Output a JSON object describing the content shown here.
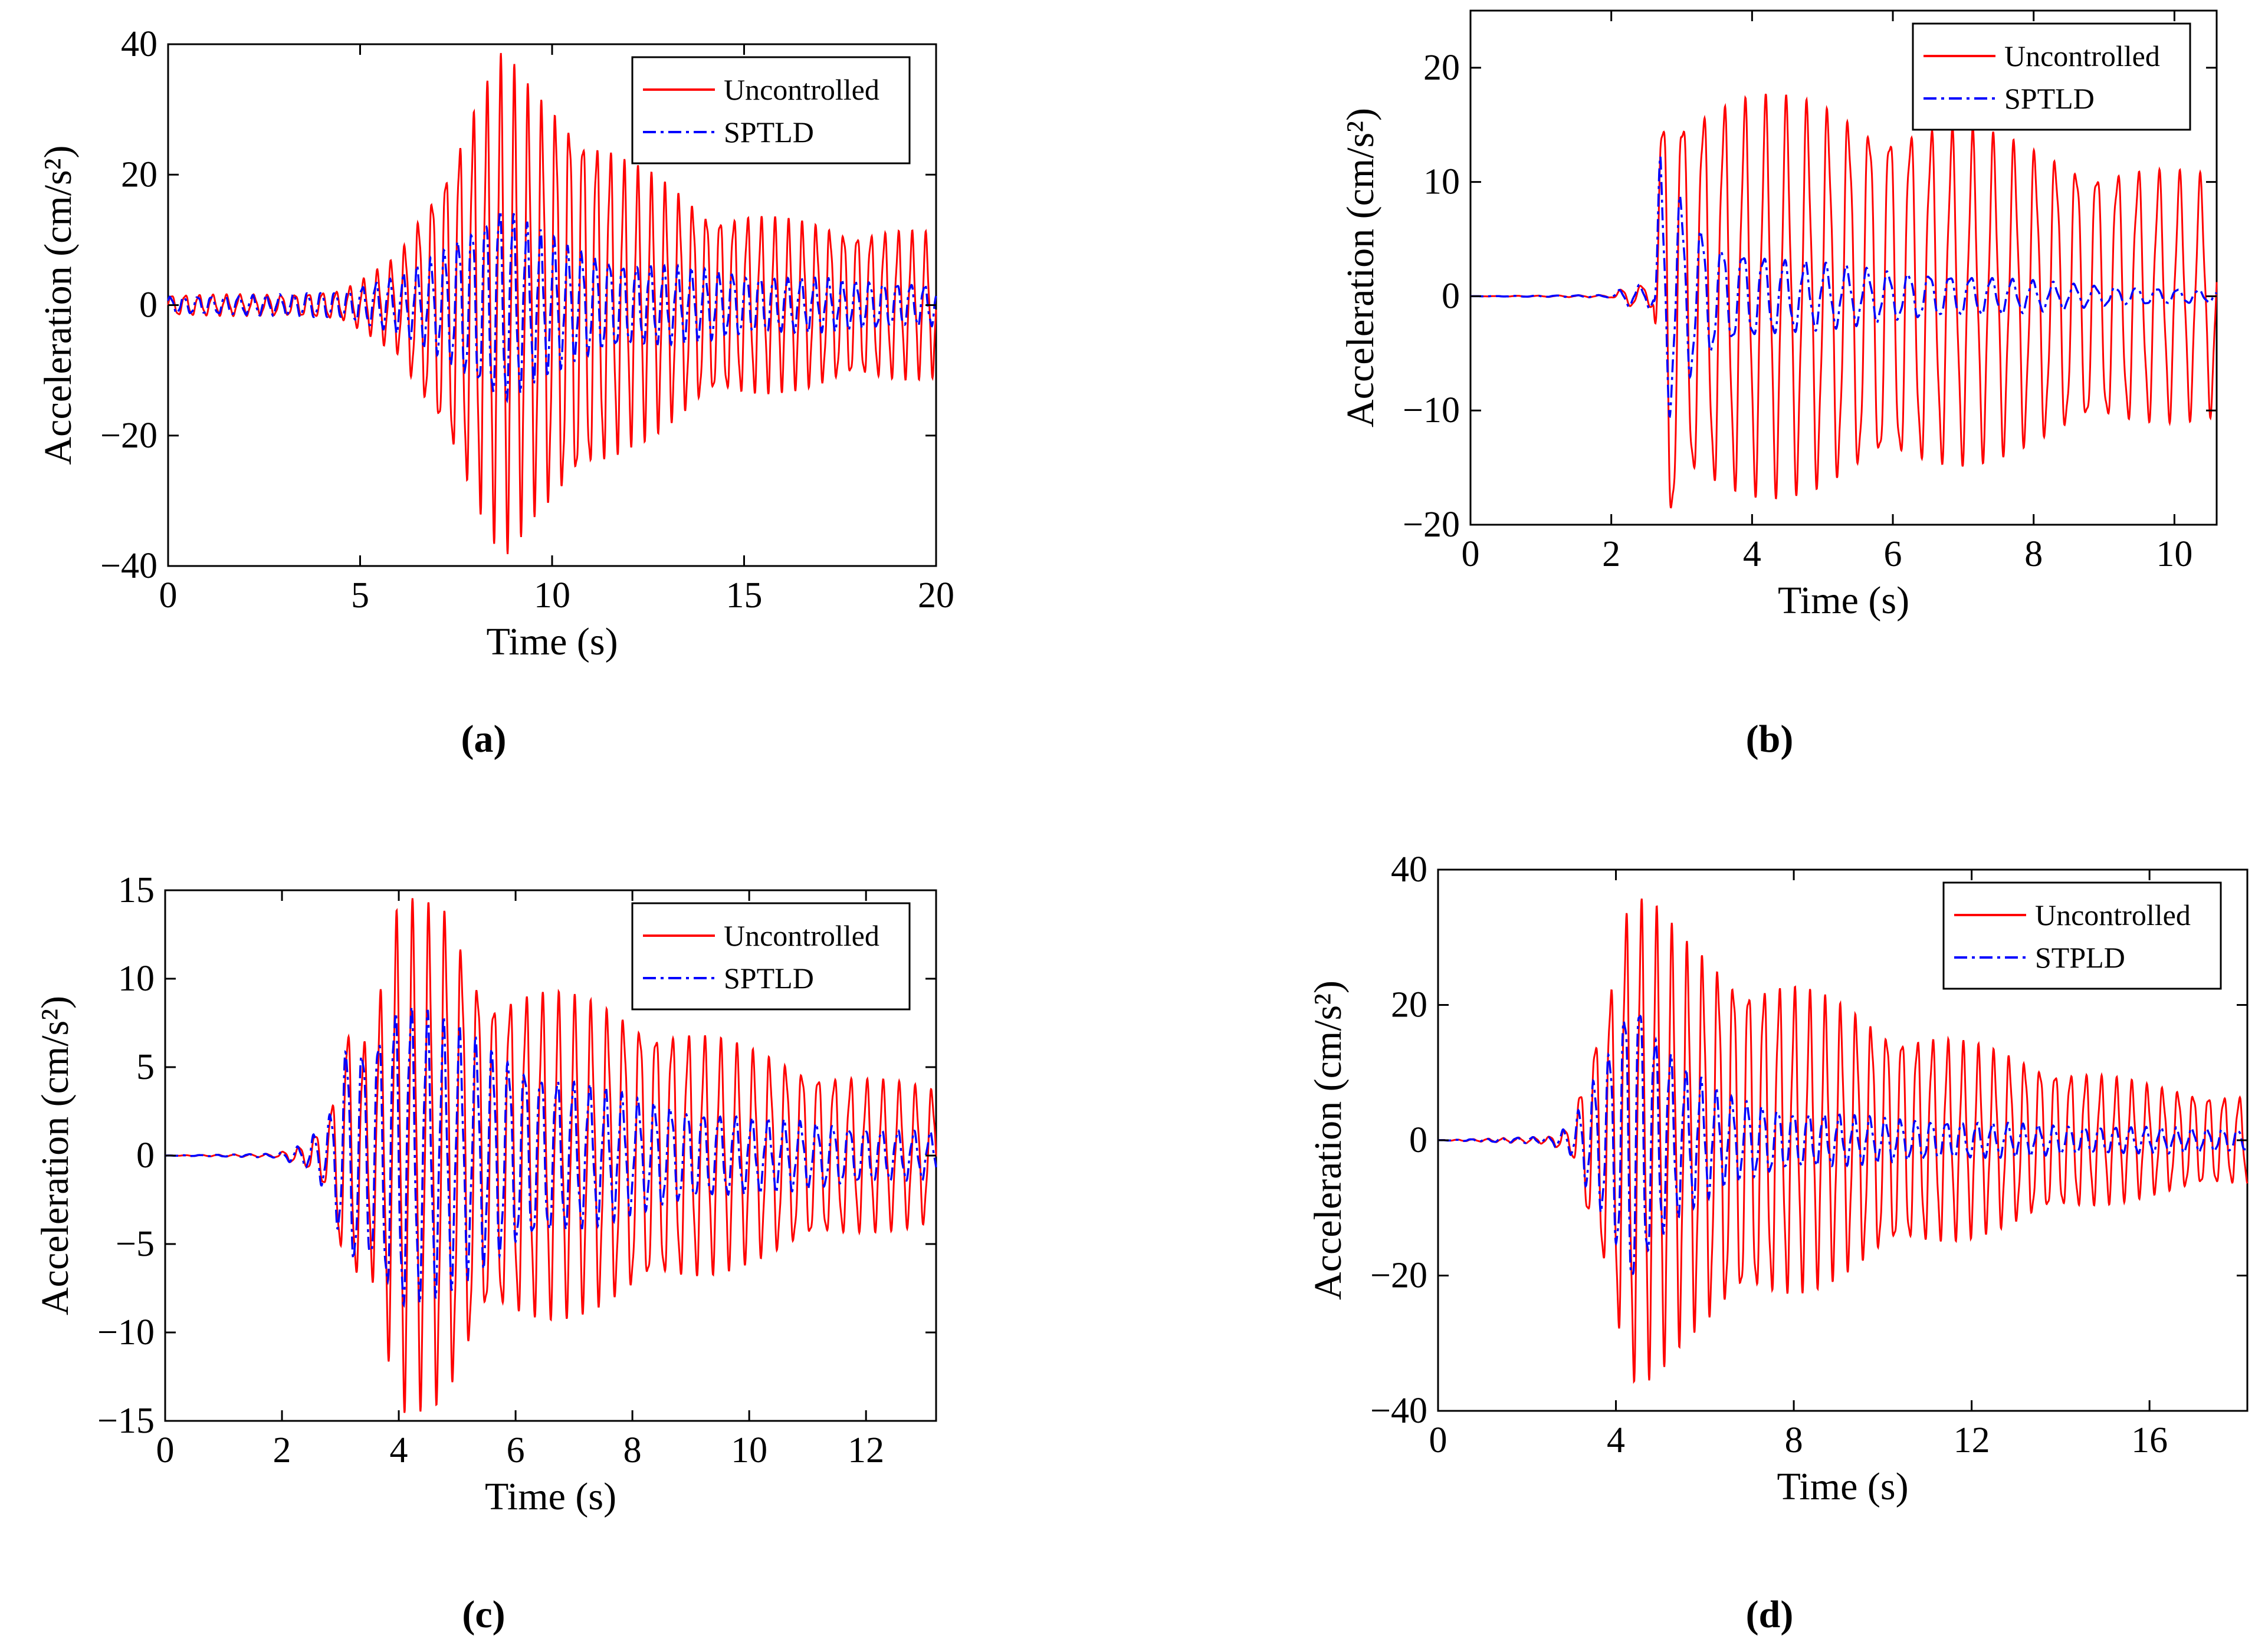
{
  "colors": {
    "uncontrolled": "#ff0000",
    "controlled": "#0000ff",
    "axis": "#000000",
    "background": "#ffffff"
  },
  "chart_data": [
    {
      "panel": "(a)",
      "type": "line",
      "xlabel": "Time (s)",
      "ylabel": "Acceleration (cm/s²)",
      "xlim": [
        0,
        20
      ],
      "ylim": [
        -40,
        40
      ],
      "xticks": [
        0,
        5,
        10,
        15,
        20
      ],
      "yticks": [
        -40,
        -20,
        0,
        20,
        40
      ],
      "grid": false,
      "legend_position": "top-right",
      "series": [
        {
          "name": "Uncontrolled",
          "style": "solid",
          "frequency_hz": 2.8,
          "envelope": [
            [
              0,
              1.5
            ],
            [
              3,
              1.5
            ],
            [
              4.5,
              2
            ],
            [
              5.2,
              4
            ],
            [
              6,
              7
            ],
            [
              7,
              18
            ],
            [
              8,
              29
            ],
            [
              8.7,
              35
            ],
            [
              9.5,
              30
            ],
            [
              10.5,
              28
            ],
            [
              12,
              20
            ],
            [
              14,
              14
            ],
            [
              16,
              12
            ],
            [
              18,
              11
            ],
            [
              20,
              10
            ]
          ]
        },
        {
          "name": "SPTLD",
          "style": "dash-dot",
          "frequency_hz": 2.8,
          "envelope": [
            [
              0,
              1.2
            ],
            [
              3,
              1.5
            ],
            [
              4.5,
              2
            ],
            [
              5.2,
              3
            ],
            [
              6,
              4
            ],
            [
              7,
              7
            ],
            [
              8,
              12
            ],
            [
              8.7,
              15
            ],
            [
              9.5,
              11
            ],
            [
              10.5,
              8
            ],
            [
              12,
              6
            ],
            [
              14,
              5
            ],
            [
              16,
              4
            ],
            [
              18,
              3.5
            ],
            [
              20,
              3
            ]
          ]
        }
      ]
    },
    {
      "panel": "(b)",
      "type": "line",
      "xlabel": "Time (s)",
      "ylabel": "Acceleration (cm/s²)",
      "xlim": [
        0,
        10.6
      ],
      "ylim": [
        -20,
        25
      ],
      "xticks": [
        0,
        2,
        4,
        6,
        8,
        10
      ],
      "yticks": [
        -20,
        -10,
        0,
        10,
        20
      ],
      "grid": false,
      "legend_position": "top-right",
      "series": [
        {
          "name": "Uncontrolled",
          "style": "solid",
          "frequency_hz": 3.4,
          "envelope": [
            [
              0,
              0
            ],
            [
              2.0,
              0.1
            ],
            [
              2.2,
              0.8
            ],
            [
              2.6,
              1
            ],
            [
              2.7,
              14
            ],
            [
              2.8,
              22
            ],
            [
              3.0,
              16
            ],
            [
              4.0,
              16
            ],
            [
              5,
              15.5
            ],
            [
              6,
              14.5
            ],
            [
              7,
              13.5
            ],
            [
              8,
              12
            ],
            [
              9,
              11
            ],
            [
              10,
              10
            ],
            [
              10.6,
              9.5
            ]
          ]
        },
        {
          "name": "SPTLD",
          "style": "dash-dot",
          "frequency_hz": 3.4,
          "envelope": [
            [
              0,
              0
            ],
            [
              2.0,
              0.1
            ],
            [
              2.2,
              0.8
            ],
            [
              2.6,
              1
            ],
            [
              2.7,
              12
            ],
            [
              2.8,
              10
            ],
            [
              3.2,
              6
            ],
            [
              3.6,
              4
            ],
            [
              4.5,
              3
            ],
            [
              6,
              2
            ],
            [
              7.5,
              1.5
            ],
            [
              9,
              0.8
            ],
            [
              10.6,
              0.5
            ]
          ]
        }
      ]
    },
    {
      "panel": "(c)",
      "type": "line",
      "xlabel": "Time (s)",
      "ylabel": "Acceleration (cm/s²)",
      "xlim": [
        0,
        13.2
      ],
      "ylim": [
        -15,
        15
      ],
      "xticks": [
        0,
        2,
        4,
        6,
        8,
        10,
        12
      ],
      "yticks": [
        -15,
        -10,
        -5,
        0,
        5,
        10,
        15
      ],
      "grid": false,
      "legend_position": "top-right",
      "series": [
        {
          "name": "Uncontrolled",
          "style": "solid",
          "frequency_hz": 3.6,
          "envelope": [
            [
              0,
              0
            ],
            [
              1.9,
              0.1
            ],
            [
              2.4,
              0.6
            ],
            [
              2.8,
              2
            ],
            [
              3.1,
              7
            ],
            [
              3.5,
              6
            ],
            [
              4.0,
              13
            ],
            [
              4.8,
              13
            ],
            [
              5.5,
              9
            ],
            [
              6.5,
              8.5
            ],
            [
              8,
              7.5
            ],
            [
              10,
              5.5
            ],
            [
              12,
              4
            ],
            [
              13.2,
              3.5
            ]
          ]
        },
        {
          "name": "SPTLD",
          "style": "dash-dot",
          "frequency_hz": 3.6,
          "envelope": [
            [
              0,
              0
            ],
            [
              1.9,
              0.1
            ],
            [
              2.4,
              0.6
            ],
            [
              2.8,
              2
            ],
            [
              3.1,
              6
            ],
            [
              3.5,
              6
            ],
            [
              4.0,
              8.5
            ],
            [
              4.8,
              7
            ],
            [
              6,
              5
            ],
            [
              8,
              3
            ],
            [
              10,
              2
            ],
            [
              12,
              1.5
            ],
            [
              13.2,
              1.2
            ]
          ]
        }
      ]
    },
    {
      "panel": "(d)",
      "type": "line",
      "xlabel": "Time (s)",
      "ylabel": "Acceleration (cm/s²)",
      "xlim": [
        0,
        18.2
      ],
      "ylim": [
        -40,
        40
      ],
      "xticks": [
        0,
        4,
        8,
        12,
        16
      ],
      "yticks": [
        -40,
        -20,
        0,
        20,
        40
      ],
      "grid": false,
      "legend_position": "top-right",
      "series": [
        {
          "name": "Uncontrolled",
          "style": "solid",
          "frequency_hz": 2.9,
          "envelope": [
            [
              0,
              0
            ],
            [
              2.5,
              0.5
            ],
            [
              3.0,
              2
            ],
            [
              3.3,
              10
            ],
            [
              3.8,
              20
            ],
            [
              4.3,
              34
            ],
            [
              4.8,
              32
            ],
            [
              5.5,
              27
            ],
            [
              6.5,
              24
            ],
            [
              8,
              21
            ],
            [
              10,
              16
            ],
            [
              12,
              13
            ],
            [
              14,
              10
            ],
            [
              16,
              7.5
            ],
            [
              18.2,
              6
            ]
          ]
        },
        {
          "name": "STPLD",
          "style": "dash-dot",
          "frequency_hz": 2.9,
          "envelope": [
            [
              0,
              0
            ],
            [
              2.5,
              0.5
            ],
            [
              3.0,
              2
            ],
            [
              3.3,
              6
            ],
            [
              3.8,
              12
            ],
            [
              4.4,
              23
            ],
            [
              4.8,
              16
            ],
            [
              5.5,
              10
            ],
            [
              6.5,
              6
            ],
            [
              8,
              4
            ],
            [
              10,
              3
            ],
            [
              12,
              2.5
            ],
            [
              14,
              2
            ],
            [
              16,
              1.8
            ],
            [
              18.2,
              1.5
            ]
          ]
        }
      ]
    }
  ],
  "captions": [
    "(a)",
    "(b)",
    "(c)",
    "(d)"
  ]
}
